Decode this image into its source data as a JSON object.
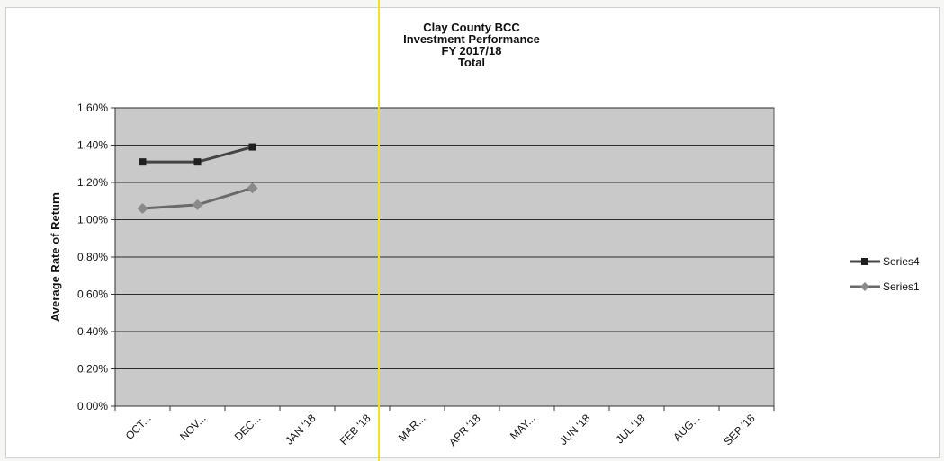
{
  "chart_data": {
    "type": "line",
    "title": [
      "Clay County BCC",
      "Investment Performance",
      "FY 2017/18",
      "Total"
    ],
    "xlabel": "",
    "ylabel": "Average Rate of Return",
    "categories": [
      "OCT...",
      "NOV...",
      "DEC...",
      "JAN '18",
      "FEB '18",
      "MAR...",
      "APR '18",
      "MAY...",
      "JUN '18",
      "JUL '18",
      "AUG...",
      "SEP '18"
    ],
    "ylim": [
      0,
      1.6
    ],
    "yticks": [
      "0.00%",
      "0.20%",
      "0.40%",
      "0.60%",
      "0.80%",
      "1.00%",
      "1.20%",
      "1.40%",
      "1.60%"
    ],
    "grid": true,
    "legend_position": "right",
    "series": [
      {
        "name": "Series4",
        "values": [
          1.31,
          1.31,
          1.39,
          null,
          null,
          null,
          null,
          null,
          null,
          null,
          null,
          null
        ],
        "color": "#444444",
        "marker": "square"
      },
      {
        "name": "Series1",
        "values": [
          1.06,
          1.08,
          1.17,
          null,
          null,
          null,
          null,
          null,
          null,
          null,
          null,
          null
        ],
        "color": "#6a6a6a",
        "marker": "diamond"
      }
    ],
    "plot_background": "#c9c9c9"
  }
}
